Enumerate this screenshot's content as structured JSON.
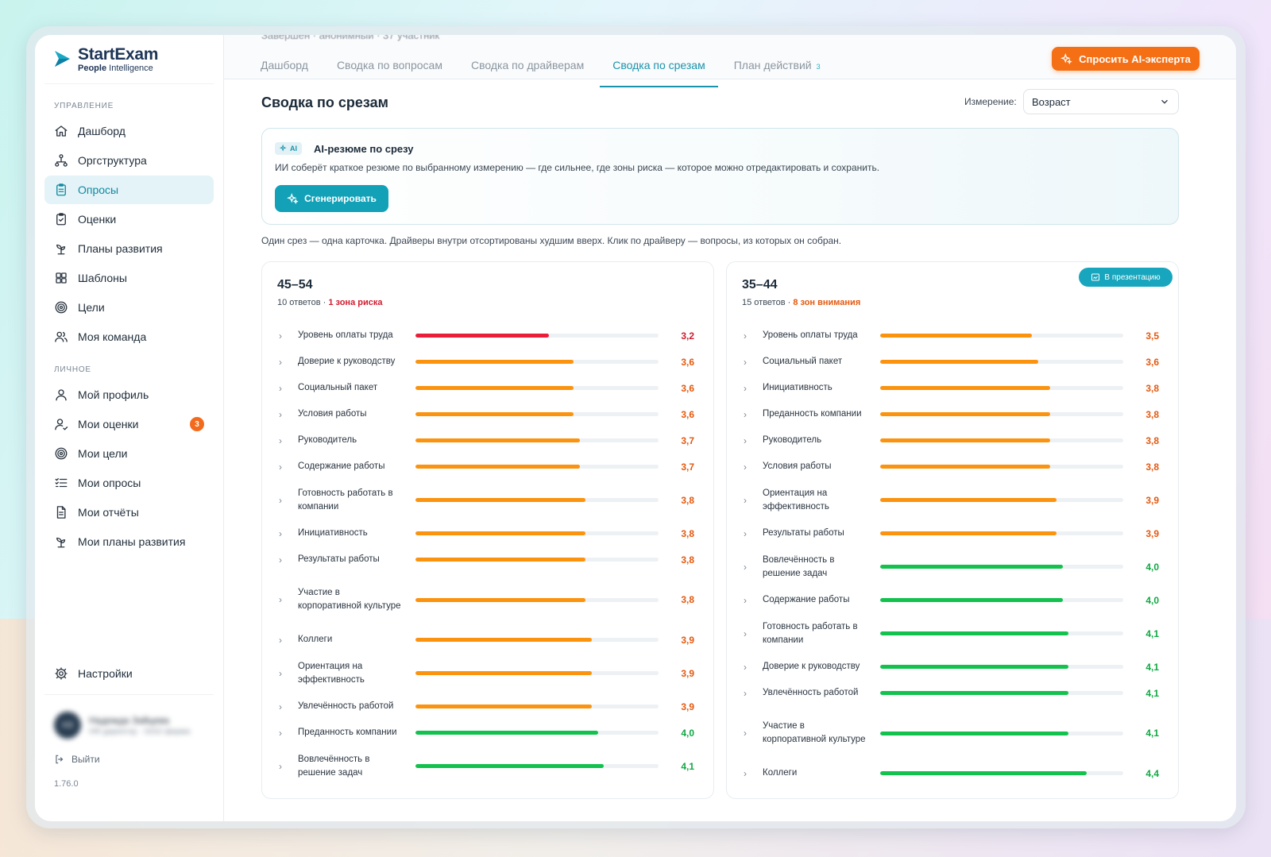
{
  "colors": {
    "red": "#ea1d3b",
    "orange": "#fb930f",
    "green": "#13c24e",
    "teal": "#12a1b7",
    "accent_orange": "#f56f15"
  },
  "logo": {
    "name": "StartExam",
    "sub_bold": "People",
    "sub_rest": "Intelligence"
  },
  "sidebar": {
    "section_manage": "УПРАВЛЕНИЕ",
    "manage_items": [
      {
        "label": "Дашборд",
        "icon": "home-icon"
      },
      {
        "label": "Оргструктура",
        "icon": "org-structure-icon"
      },
      {
        "label": "Опросы",
        "icon": "clipboard-icon",
        "active": true
      },
      {
        "label": "Оценки",
        "icon": "clipboard-check-icon"
      },
      {
        "label": "Планы развития",
        "icon": "sprout-icon"
      },
      {
        "label": "Шаблоны",
        "icon": "grid-icon"
      },
      {
        "label": "Цели",
        "icon": "target-icon"
      },
      {
        "label": "Моя команда",
        "icon": "users-icon"
      }
    ],
    "section_personal": "ЛИЧНОЕ",
    "personal_items": [
      {
        "label": "Мой профиль",
        "icon": "user-icon"
      },
      {
        "label": "Мои оценки",
        "icon": "user-check-icon",
        "badge": "3"
      },
      {
        "label": "Мои цели",
        "icon": "target-icon"
      },
      {
        "label": "Мои опросы",
        "icon": "list-checks-icon"
      },
      {
        "label": "Мои отчёты",
        "icon": "file-text-icon"
      },
      {
        "label": "Мои планы развития",
        "icon": "sprout-icon"
      }
    ],
    "settings_label": "Настройки",
    "user": {
      "avatar": "НЗ",
      "name": "Надежда Зайцева",
      "role": "HR-директор · ООО фирма"
    },
    "logout_label": "Выйти",
    "version": "1.76.0"
  },
  "header": {
    "cut_text": "Завершён · анонимный · 37 участник",
    "tabs": [
      {
        "label": "Дашборд"
      },
      {
        "label": "Сводка по вопросам"
      },
      {
        "label": "Сводка по драйверам"
      },
      {
        "label": "Сводка по срезам",
        "active": true
      },
      {
        "label": "План действий",
        "count": "3"
      }
    ],
    "ai_expert_label": "Спросить AI-эксперта"
  },
  "page": {
    "title": "Сводка по срезам",
    "dimension_label": "Измерение:",
    "dimension_value": "Возраст"
  },
  "ai_summary": {
    "tag": "AI",
    "title": "AI-резюме по срезу",
    "description": "ИИ соберёт краткое резюме по выбранному измерению — где сильнее, где зоны риска — которое можно отредактировать и сохранить.",
    "button_label": "Сгенерировать"
  },
  "hint": "Один срез — одна карточка. Драйверы внутри отсортированы худшим вверх. Клик по драйверу — вопросы, из которых он собран.",
  "slices": [
    {
      "title": "45–54",
      "responses": "10 ответов",
      "risk_text": "1 зона риска",
      "risk_level": "red",
      "drivers": [
        {
          "name": "Уровень оплаты труда",
          "value": "3,2",
          "score": 3.2,
          "level": "red"
        },
        {
          "name": "Доверие к руководству",
          "value": "3,6",
          "score": 3.6,
          "level": "orange"
        },
        {
          "name": "Социальный пакет",
          "value": "3,6",
          "score": 3.6,
          "level": "orange"
        },
        {
          "name": "Условия работы",
          "value": "3,6",
          "score": 3.6,
          "level": "orange"
        },
        {
          "name": "Руководитель",
          "value": "3,7",
          "score": 3.7,
          "level": "orange"
        },
        {
          "name": "Содержание работы",
          "value": "3,7",
          "score": 3.7,
          "level": "orange"
        },
        {
          "name": "Готовность работать в компании",
          "value": "3,8",
          "score": 3.8,
          "level": "orange"
        },
        {
          "name": "Инициативность",
          "value": "3,8",
          "score": 3.8,
          "level": "orange"
        },
        {
          "name": "Результаты работы",
          "value": "3,8",
          "score": 3.8,
          "level": "orange"
        },
        {
          "name": "Участие в корпоративной культуре",
          "value": "3,8",
          "score": 3.8,
          "level": "orange"
        },
        {
          "name": "Коллеги",
          "value": "3,9",
          "score": 3.9,
          "level": "orange"
        },
        {
          "name": "Ориентация на эффективность",
          "value": "3,9",
          "score": 3.9,
          "level": "orange"
        },
        {
          "name": "Увлечённость работой",
          "value": "3,9",
          "score": 3.9,
          "level": "orange"
        },
        {
          "name": "Преданность компании",
          "value": "4,0",
          "score": 4.0,
          "level": "green"
        },
        {
          "name": "Вовлечённость в решение задач",
          "value": "4,1",
          "score": 4.1,
          "level": "green"
        }
      ]
    },
    {
      "title": "35–44",
      "responses": "15 ответов",
      "risk_text": "8 зон внимания",
      "risk_level": "orange",
      "presentation_label": "В презентацию",
      "drivers": [
        {
          "name": "Уровень оплаты труда",
          "value": "3,5",
          "score": 3.5,
          "level": "orange"
        },
        {
          "name": "Социальный пакет",
          "value": "3,6",
          "score": 3.6,
          "level": "orange"
        },
        {
          "name": "Инициативность",
          "value": "3,8",
          "score": 3.8,
          "level": "orange"
        },
        {
          "name": "Преданность компании",
          "value": "3,8",
          "score": 3.8,
          "level": "orange"
        },
        {
          "name": "Руководитель",
          "value": "3,8",
          "score": 3.8,
          "level": "orange"
        },
        {
          "name": "Условия работы",
          "value": "3,8",
          "score": 3.8,
          "level": "orange"
        },
        {
          "name": "Ориентация на эффективность",
          "value": "3,9",
          "score": 3.9,
          "level": "orange"
        },
        {
          "name": "Результаты работы",
          "value": "3,9",
          "score": 3.9,
          "level": "orange"
        },
        {
          "name": "Вовлечённость в решение задач",
          "value": "4,0",
          "score": 4.0,
          "level": "green"
        },
        {
          "name": "Содержание работы",
          "value": "4,0",
          "score": 4.0,
          "level": "green"
        },
        {
          "name": "Готовность работать в компании",
          "value": "4,1",
          "score": 4.1,
          "level": "green"
        },
        {
          "name": "Доверие к руководству",
          "value": "4,1",
          "score": 4.1,
          "level": "green"
        },
        {
          "name": "Увлечённость работой",
          "value": "4,1",
          "score": 4.1,
          "level": "green"
        },
        {
          "name": "Участие в корпоративной культуре",
          "value": "4,1",
          "score": 4.1,
          "level": "green"
        },
        {
          "name": "Коллеги",
          "value": "4,4",
          "score": 4.4,
          "level": "green"
        }
      ]
    }
  ]
}
